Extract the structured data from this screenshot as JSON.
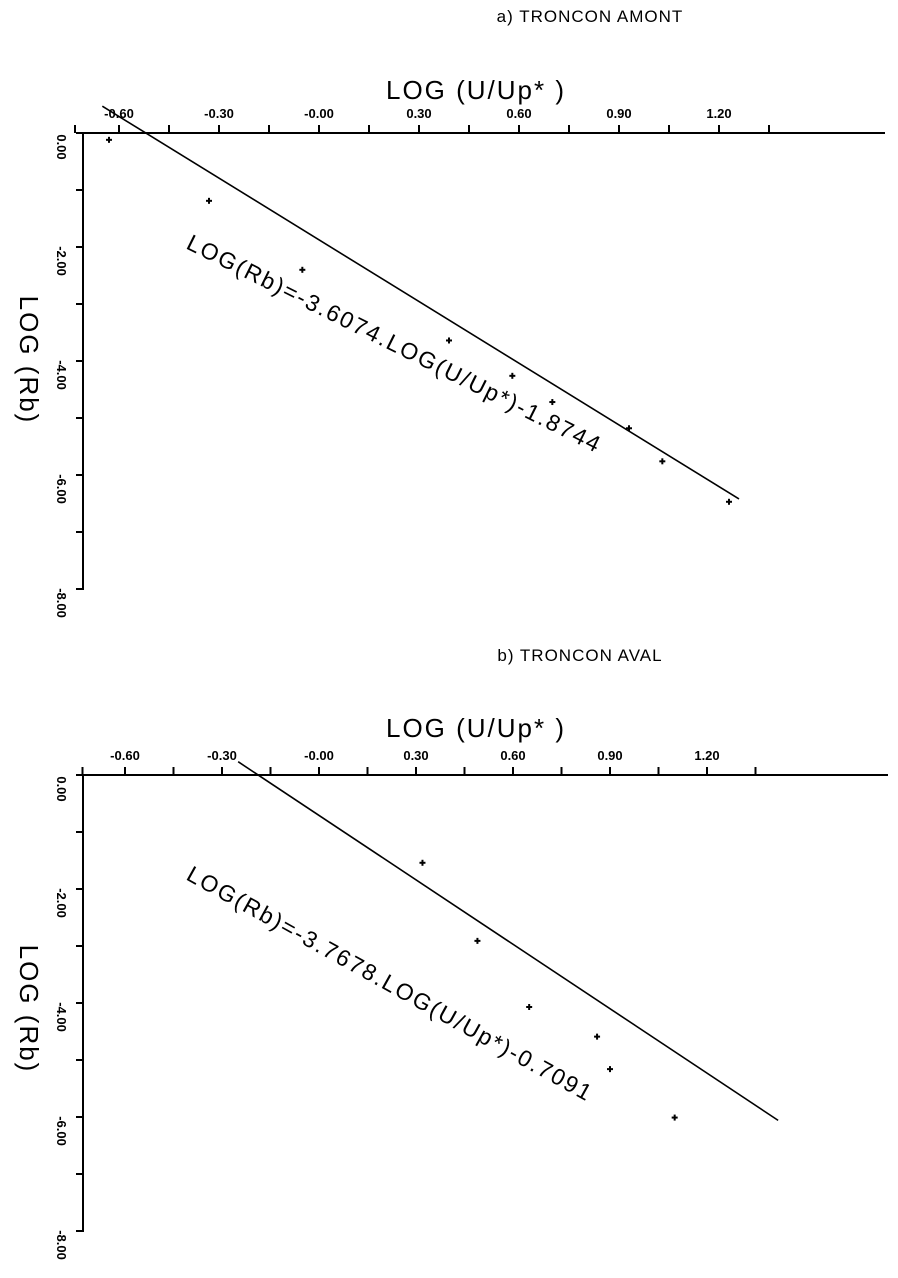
{
  "chart_data": [
    {
      "type": "scatter",
      "title": "a) TRONCON AMONT",
      "xlabel": "LOG (U/Up* )",
      "ylabel": "LOG (Rb)",
      "x_ticks": [
        "-0.60",
        "-0.30",
        "-0.00",
        "0.30",
        "0.60",
        "0.90",
        "1.20"
      ],
      "y_ticks": [
        "0.00",
        "-2.00",
        "-4.00",
        "-6.00",
        "-8.00"
      ],
      "xlim": [
        -0.65,
        1.48
      ],
      "ylim": [
        -8.0,
        0.0
      ],
      "grid": false,
      "series": [
        {
          "x": [
            -0.63,
            -0.33,
            -0.05,
            0.39,
            0.58,
            0.7,
            0.93,
            1.03,
            1.23
          ],
          "y": [
            -0.12,
            -1.19,
            -2.4,
            -3.64,
            -4.26,
            -4.72,
            -5.18,
            -5.76,
            -6.47
          ]
        }
      ],
      "fit": {
        "slope": -3.6074,
        "intercept": -1.8744,
        "x_range": [
          -0.65,
          1.26
        ],
        "label": "LOG(Rb)=-3.6074.LOG(U/Up*)-1.8744"
      }
    },
    {
      "type": "scatter",
      "title": "b) TRONCON AVAL",
      "xlabel": "LOG (U/Up* )",
      "ylabel": "LOG (Rb)",
      "x_ticks": [
        "-0.60",
        "-0.30",
        "-0.00",
        "0.30",
        "0.60",
        "0.90",
        "1.20"
      ],
      "y_ticks": [
        "0.00",
        "-2.00",
        "-4.00",
        "-6.00",
        "-8.00"
      ],
      "xlim": [
        -0.65,
        1.48
      ],
      "ylim": [
        -8.0,
        0.0
      ],
      "grid": false,
      "series": [
        {
          "x": [
            0.32,
            0.49,
            0.65,
            0.86,
            0.9,
            1.1
          ],
          "y": [
            -1.54,
            -2.91,
            -4.07,
            -4.59,
            -5.16,
            -6.01
          ]
        }
      ],
      "fit": {
        "slope": -3.7678,
        "intercept": -0.7091,
        "x_range": [
          -0.25,
          1.42
        ],
        "label": "LOG(Rb)=-3.7678.LOG(U/Up*)-0.7091"
      }
    }
  ]
}
